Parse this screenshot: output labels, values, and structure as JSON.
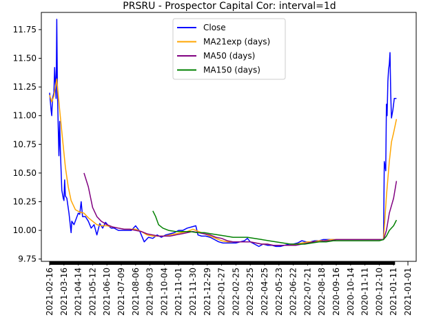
{
  "chart_data": {
    "type": "line",
    "title": "PRSRU - Prospector Capital Cor: interval=1d",
    "xlabel": "",
    "ylabel": "",
    "ylim": [
      9.73,
      11.9
    ],
    "grid": false,
    "legend_position": "top-center",
    "x_tick_labels": [
      "2021-02-16",
      "2021-03-16",
      "2021-04-14",
      "2021-05-12",
      "2021-06-10",
      "2021-07-09",
      "2021-08-06",
      "2021-09-03",
      "2021-10-04",
      "2021-11-01",
      "2021-11-30",
      "2021-12-29",
      "2022-01-27",
      "2022-02-25",
      "2022-03-25",
      "2022-04-25",
      "2022-05-23",
      "2022-06-22",
      "2022-07-21",
      "2022-08-18",
      "2020-09-16",
      "2020-10-14",
      "2020-11-11",
      "2020-12-10",
      "2021-01-11",
      "2021-01-01"
    ],
    "y_ticks": [
      9.75,
      10.0,
      10.25,
      10.5,
      10.75,
      11.0,
      11.25,
      11.5,
      11.75
    ],
    "y_tick_labels": [
      "9.75",
      "10.00",
      "10.25",
      "10.50",
      "10.75",
      "11.00",
      "11.25",
      "11.50",
      "11.75"
    ],
    "x_range": [
      0,
      25
    ],
    "series": [
      {
        "name": "Close",
        "color": "#0000ff",
        "points": [
          [
            0,
            11.2
          ],
          [
            0.1,
            11.05
          ],
          [
            0.15,
            11.0
          ],
          [
            0.2,
            11.15
          ],
          [
            0.3,
            11.2
          ],
          [
            0.35,
            11.42
          ],
          [
            0.4,
            11.3
          ],
          [
            0.45,
            11.15
          ],
          [
            0.5,
            11.84
          ],
          [
            0.55,
            11.2
          ],
          [
            0.6,
            10.9
          ],
          [
            0.65,
            10.65
          ],
          [
            0.7,
            10.95
          ],
          [
            0.75,
            10.7
          ],
          [
            0.85,
            10.35
          ],
          [
            0.95,
            10.28
          ],
          [
            1.0,
            10.26
          ],
          [
            1.05,
            10.44
          ],
          [
            1.1,
            10.3
          ],
          [
            1.2,
            10.28
          ],
          [
            1.35,
            10.15
          ],
          [
            1.5,
            9.98
          ],
          [
            1.55,
            10.08
          ],
          [
            1.7,
            10.05
          ],
          [
            1.85,
            10.1
          ],
          [
            2.0,
            10.15
          ],
          [
            2.1,
            10.14
          ],
          [
            2.2,
            10.25
          ],
          [
            2.3,
            10.12
          ],
          [
            2.5,
            10.12
          ],
          [
            2.7,
            10.08
          ],
          [
            2.9,
            10.02
          ],
          [
            3.1,
            10.05
          ],
          [
            3.3,
            9.96
          ],
          [
            3.5,
            10.06
          ],
          [
            3.7,
            10.02
          ],
          [
            3.9,
            10.07
          ],
          [
            4.1,
            10.04
          ],
          [
            4.3,
            10.02
          ],
          [
            4.5,
            10.02
          ],
          [
            4.8,
            10.0
          ],
          [
            5.1,
            10.0
          ],
          [
            5.4,
            10.0
          ],
          [
            5.7,
            10.0
          ],
          [
            6.0,
            10.04
          ],
          [
            6.3,
            9.99
          ],
          [
            6.6,
            9.9
          ],
          [
            6.9,
            9.94
          ],
          [
            7.2,
            9.93
          ],
          [
            7.5,
            9.96
          ],
          [
            7.8,
            9.94
          ],
          [
            8.1,
            9.96
          ],
          [
            8.4,
            9.97
          ],
          [
            8.7,
            9.98
          ],
          [
            9.0,
            10.0
          ],
          [
            9.3,
            10.0
          ],
          [
            9.6,
            10.02
          ],
          [
            9.9,
            10.03
          ],
          [
            10.2,
            10.04
          ],
          [
            10.35,
            9.96
          ],
          [
            10.6,
            9.95
          ],
          [
            10.9,
            9.95
          ],
          [
            11.2,
            9.94
          ],
          [
            11.5,
            9.92
          ],
          [
            11.8,
            9.9
          ],
          [
            12.1,
            9.89
          ],
          [
            12.4,
            9.89
          ],
          [
            12.7,
            9.89
          ],
          [
            13.0,
            9.89
          ],
          [
            13.3,
            9.9
          ],
          [
            13.6,
            9.91
          ],
          [
            13.8,
            9.93
          ],
          [
            14.0,
            9.9
          ],
          [
            14.3,
            9.88
          ],
          [
            14.6,
            9.86
          ],
          [
            14.9,
            9.88
          ],
          [
            15.2,
            9.87
          ],
          [
            15.5,
            9.87
          ],
          [
            15.8,
            9.86
          ],
          [
            16.1,
            9.86
          ],
          [
            16.4,
            9.87
          ],
          [
            16.7,
            9.88
          ],
          [
            17.0,
            9.88
          ],
          [
            17.3,
            9.89
          ],
          [
            17.6,
            9.91
          ],
          [
            17.9,
            9.9
          ],
          [
            18.2,
            9.9
          ],
          [
            18.5,
            9.91
          ],
          [
            18.8,
            9.91
          ],
          [
            19.1,
            9.92
          ],
          [
            19.4,
            9.92
          ],
          [
            19.7,
            9.92
          ],
          [
            20.0,
            9.92
          ],
          [
            20.5,
            9.92
          ],
          [
            21.0,
            9.92
          ],
          [
            21.5,
            9.92
          ],
          [
            22.0,
            9.92
          ],
          [
            22.5,
            9.92
          ],
          [
            23.0,
            9.92
          ],
          [
            23.3,
            9.92
          ],
          [
            23.35,
            10.6
          ],
          [
            23.45,
            10.52
          ],
          [
            23.5,
            11.1
          ],
          [
            23.55,
            11.0
          ],
          [
            23.6,
            11.3
          ],
          [
            23.65,
            11.4
          ],
          [
            23.7,
            11.45
          ],
          [
            23.75,
            11.55
          ],
          [
            23.8,
            11.2
          ],
          [
            23.85,
            10.98
          ],
          [
            23.95,
            11.05
          ],
          [
            24.0,
            11.1
          ],
          [
            24.05,
            11.15
          ],
          [
            24.2,
            11.15
          ]
        ]
      },
      {
        "name": "MA21exp (days)",
        "color": "#ffa500",
        "points": [
          [
            0,
            11.18
          ],
          [
            0.15,
            11.12
          ],
          [
            0.3,
            11.17
          ],
          [
            0.5,
            11.32
          ],
          [
            0.7,
            11.05
          ],
          [
            0.9,
            10.8
          ],
          [
            1.1,
            10.55
          ],
          [
            1.3,
            10.38
          ],
          [
            1.5,
            10.26
          ],
          [
            1.8,
            10.18
          ],
          [
            2.1,
            10.16
          ],
          [
            2.4,
            10.15
          ],
          [
            2.7,
            10.11
          ],
          [
            3.0,
            10.08
          ],
          [
            3.3,
            10.05
          ],
          [
            3.6,
            10.04
          ],
          [
            4.0,
            10.04
          ],
          [
            4.4,
            10.03
          ],
          [
            4.8,
            10.02
          ],
          [
            5.2,
            10.01
          ],
          [
            5.6,
            10.01
          ],
          [
            6.0,
            10.01
          ],
          [
            6.4,
            9.99
          ],
          [
            6.8,
            9.96
          ],
          [
            7.2,
            9.95
          ],
          [
            7.6,
            9.95
          ],
          [
            8.0,
            9.95
          ],
          [
            8.4,
            9.96
          ],
          [
            8.8,
            9.97
          ],
          [
            9.2,
            9.98
          ],
          [
            9.6,
            9.99
          ],
          [
            10.0,
            10.01
          ],
          [
            10.4,
            9.99
          ],
          [
            10.8,
            9.97
          ],
          [
            11.2,
            9.95
          ],
          [
            11.6,
            9.93
          ],
          [
            12.0,
            9.91
          ],
          [
            12.4,
            9.9
          ],
          [
            12.8,
            9.9
          ],
          [
            13.2,
            9.9
          ],
          [
            13.6,
            9.9
          ],
          [
            14.0,
            9.9
          ],
          [
            14.4,
            9.89
          ],
          [
            14.8,
            9.88
          ],
          [
            15.2,
            9.88
          ],
          [
            15.6,
            9.87
          ],
          [
            16.0,
            9.87
          ],
          [
            16.4,
            9.87
          ],
          [
            16.8,
            9.87
          ],
          [
            17.2,
            9.88
          ],
          [
            17.6,
            9.89
          ],
          [
            18.0,
            9.9
          ],
          [
            18.4,
            9.9
          ],
          [
            18.8,
            9.91
          ],
          [
            19.2,
            9.91
          ],
          [
            19.6,
            9.92
          ],
          [
            20.0,
            9.92
          ],
          [
            21.0,
            9.92
          ],
          [
            22.0,
            9.92
          ],
          [
            23.0,
            9.92
          ],
          [
            23.3,
            9.92
          ],
          [
            23.5,
            10.3
          ],
          [
            23.7,
            10.6
          ],
          [
            23.85,
            10.77
          ],
          [
            24.0,
            10.85
          ],
          [
            24.2,
            10.97
          ]
        ]
      },
      {
        "name": "MA50 (days)",
        "color": "#800080",
        "points": [
          [
            2.4,
            10.5
          ],
          [
            2.7,
            10.38
          ],
          [
            3.0,
            10.2
          ],
          [
            3.3,
            10.12
          ],
          [
            3.6,
            10.08
          ],
          [
            4.0,
            10.05
          ],
          [
            4.4,
            10.03
          ],
          [
            4.8,
            10.02
          ],
          [
            5.2,
            10.01
          ],
          [
            5.6,
            10.01
          ],
          [
            6.0,
            10.0
          ],
          [
            6.4,
            9.99
          ],
          [
            6.8,
            9.97
          ],
          [
            7.2,
            9.96
          ],
          [
            7.6,
            9.95
          ],
          [
            8.0,
            9.95
          ],
          [
            8.4,
            9.95
          ],
          [
            8.8,
            9.96
          ],
          [
            9.2,
            9.97
          ],
          [
            9.6,
            9.98
          ],
          [
            10.0,
            9.99
          ],
          [
            10.4,
            9.98
          ],
          [
            10.8,
            9.97
          ],
          [
            11.2,
            9.96
          ],
          [
            11.6,
            9.94
          ],
          [
            12.0,
            9.93
          ],
          [
            12.4,
            9.91
          ],
          [
            12.8,
            9.9
          ],
          [
            13.2,
            9.9
          ],
          [
            13.6,
            9.9
          ],
          [
            14.0,
            9.9
          ],
          [
            14.4,
            9.89
          ],
          [
            14.8,
            9.88
          ],
          [
            15.2,
            9.88
          ],
          [
            15.6,
            9.87
          ],
          [
            16.0,
            9.87
          ],
          [
            16.4,
            9.87
          ],
          [
            16.8,
            9.87
          ],
          [
            17.2,
            9.87
          ],
          [
            17.6,
            9.88
          ],
          [
            18.0,
            9.89
          ],
          [
            18.4,
            9.9
          ],
          [
            18.8,
            9.9
          ],
          [
            19.2,
            9.91
          ],
          [
            19.6,
            9.91
          ],
          [
            20.0,
            9.92
          ],
          [
            21.0,
            9.92
          ],
          [
            22.0,
            9.92
          ],
          [
            23.0,
            9.92
          ],
          [
            23.3,
            9.92
          ],
          [
            23.5,
            10.0
          ],
          [
            23.7,
            10.15
          ],
          [
            24.0,
            10.28
          ],
          [
            24.2,
            10.43
          ]
        ]
      },
      {
        "name": "MA150 (days)",
        "color": "#008000",
        "points": [
          [
            7.2,
            10.17
          ],
          [
            7.4,
            10.12
          ],
          [
            7.6,
            10.05
          ],
          [
            7.9,
            10.02
          ],
          [
            8.3,
            10.0
          ],
          [
            8.8,
            9.99
          ],
          [
            9.3,
            9.99
          ],
          [
            9.8,
            9.99
          ],
          [
            10.3,
            9.98
          ],
          [
            10.8,
            9.98
          ],
          [
            11.3,
            9.97
          ],
          [
            11.8,
            9.96
          ],
          [
            12.3,
            9.95
          ],
          [
            12.8,
            9.94
          ],
          [
            13.3,
            9.94
          ],
          [
            13.8,
            9.94
          ],
          [
            14.3,
            9.93
          ],
          [
            14.8,
            9.92
          ],
          [
            15.3,
            9.91
          ],
          [
            15.8,
            9.9
          ],
          [
            16.3,
            9.89
          ],
          [
            16.8,
            9.88
          ],
          [
            17.3,
            9.88
          ],
          [
            17.8,
            9.88
          ],
          [
            18.3,
            9.89
          ],
          [
            18.8,
            9.9
          ],
          [
            19.3,
            9.9
          ],
          [
            19.8,
            9.91
          ],
          [
            20.3,
            9.91
          ],
          [
            21.0,
            9.91
          ],
          [
            22.0,
            9.91
          ],
          [
            23.0,
            9.91
          ],
          [
            23.3,
            9.92
          ],
          [
            23.5,
            9.95
          ],
          [
            23.7,
            10.0
          ],
          [
            24.0,
            10.04
          ],
          [
            24.2,
            10.09
          ]
        ]
      }
    ]
  }
}
